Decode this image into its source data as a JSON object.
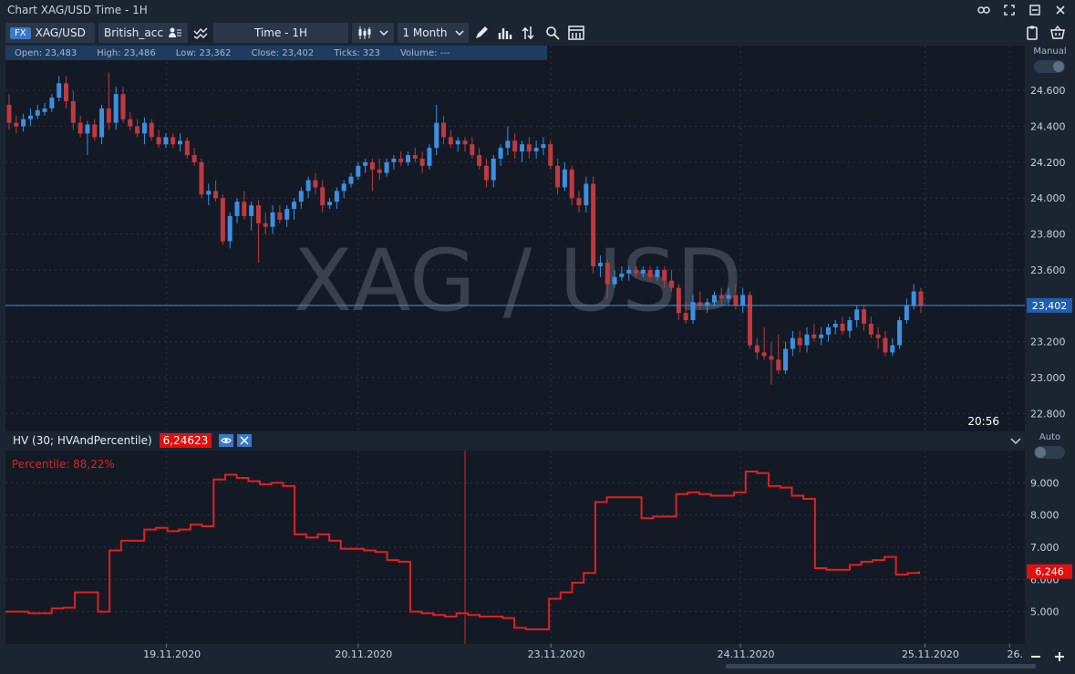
{
  "window": {
    "title": "Chart XAG/USD Time - 1H"
  },
  "toolbar": {
    "fx_badge": "FX",
    "symbol": "XAG/USD",
    "account": "British_acc",
    "timeframe": "Time - 1H",
    "period": "1 Month"
  },
  "info": {
    "open": "Open:  23,483",
    "high": "High:  23,486",
    "low": "Low:  23,362",
    "close": "Close:  23,402",
    "ticks": "Ticks:  323",
    "volume": "Volume:  ---"
  },
  "watermark": "XAG / USD",
  "price_axis": {
    "mode_label": "Manual",
    "ticks": [
      "24.600",
      "24.400",
      "24.200",
      "24.000",
      "23.800",
      "23.600",
      "23.400",
      "23.200",
      "23.000",
      "22.800"
    ],
    "current_price": "23,402",
    "time_label": "20:56"
  },
  "indicator": {
    "name": "HV (30; HVAndPercentile)",
    "value": "6,24623",
    "percentile": "Percentile: 88,22%",
    "mode_label": "Auto",
    "ticks": [
      "9.000",
      "8.000",
      "7.000",
      "6.000",
      "5.000"
    ],
    "current_value": "6,246"
  },
  "time_axis": {
    "labels": [
      "19.11.2020",
      "20.11.2020",
      "23.11.2020",
      "24.11.2020",
      "25.11.2020",
      "26."
    ]
  },
  "colors": {
    "up": "#3d8fe0",
    "down": "#c0393f",
    "hv_line": "#e02020",
    "accent": "#3b78c4"
  },
  "chart_data": [
    {
      "type": "candlestick",
      "title": "XAG / USD",
      "ylim": [
        22.7,
        24.85
      ],
      "ohlc": [
        [
          24.52,
          24.58,
          24.38,
          24.42
        ],
        [
          24.42,
          24.46,
          24.36,
          24.4
        ],
        [
          24.4,
          24.47,
          24.37,
          24.44
        ],
        [
          24.44,
          24.5,
          24.4,
          24.46
        ],
        [
          24.46,
          24.52,
          24.44,
          24.49
        ],
        [
          24.48,
          24.53,
          24.46,
          24.5
        ],
        [
          24.5,
          24.58,
          24.48,
          24.56
        ],
        [
          24.56,
          24.68,
          24.54,
          24.64
        ],
        [
          24.64,
          24.68,
          24.5,
          24.54
        ],
        [
          24.54,
          24.6,
          24.38,
          24.42
        ],
        [
          24.42,
          24.46,
          24.34,
          24.36
        ],
        [
          24.36,
          24.43,
          24.24,
          24.41
        ],
        [
          24.41,
          24.44,
          24.32,
          24.34
        ],
        [
          24.34,
          24.52,
          24.3,
          24.5
        ],
        [
          24.5,
          24.7,
          24.38,
          24.42
        ],
        [
          24.42,
          24.62,
          24.38,
          24.58
        ],
        [
          24.58,
          24.62,
          24.42,
          24.44
        ],
        [
          24.44,
          24.48,
          24.38,
          24.4
        ],
        [
          24.4,
          24.44,
          24.34,
          24.36
        ],
        [
          24.36,
          24.45,
          24.3,
          24.42
        ],
        [
          24.42,
          24.44,
          24.32,
          24.34
        ],
        [
          24.34,
          24.38,
          24.28,
          24.3
        ],
        [
          24.3,
          24.36,
          24.28,
          24.34
        ],
        [
          24.34,
          24.36,
          24.28,
          24.3
        ],
        [
          24.3,
          24.36,
          24.26,
          24.32
        ],
        [
          24.32,
          24.34,
          24.22,
          24.24
        ],
        [
          24.24,
          24.28,
          24.18,
          24.2
        ],
        [
          24.2,
          24.22,
          24.0,
          24.02
        ],
        [
          24.02,
          24.08,
          23.96,
          24.04
        ],
        [
          24.04,
          24.1,
          23.98,
          24.0
        ],
        [
          24.0,
          24.02,
          23.74,
          23.76
        ],
        [
          23.76,
          23.92,
          23.72,
          23.9
        ],
        [
          23.9,
          24.0,
          23.86,
          23.98
        ],
        [
          23.98,
          24.04,
          23.88,
          23.9
        ],
        [
          23.9,
          23.98,
          23.82,
          23.96
        ],
        [
          23.96,
          23.99,
          23.64,
          23.86
        ],
        [
          23.86,
          23.92,
          23.8,
          23.84
        ],
        [
          23.84,
          23.96,
          23.8,
          23.92
        ],
        [
          23.92,
          23.96,
          23.86,
          23.88
        ],
        [
          23.88,
          23.96,
          23.84,
          23.94
        ],
        [
          23.94,
          24.0,
          23.88,
          23.98
        ],
        [
          23.98,
          24.06,
          23.94,
          24.04
        ],
        [
          24.04,
          24.12,
          24.0,
          24.1
        ],
        [
          24.1,
          24.14,
          24.02,
          24.06
        ],
        [
          24.06,
          24.1,
          23.92,
          23.96
        ],
        [
          23.96,
          24.0,
          23.94,
          23.98
        ],
        [
          23.98,
          24.06,
          23.94,
          24.04
        ],
        [
          24.04,
          24.1,
          24.0,
          24.08
        ],
        [
          24.08,
          24.14,
          24.06,
          24.12
        ],
        [
          24.12,
          24.2,
          24.1,
          24.18
        ],
        [
          24.18,
          24.22,
          24.14,
          24.2
        ],
        [
          24.2,
          24.22,
          24.04,
          24.16
        ],
        [
          24.16,
          24.22,
          24.1,
          24.14
        ],
        [
          24.14,
          24.22,
          24.12,
          24.2
        ],
        [
          24.2,
          24.24,
          24.16,
          24.22
        ],
        [
          24.22,
          24.26,
          24.18,
          24.2
        ],
        [
          24.2,
          24.26,
          24.18,
          24.24
        ],
        [
          24.24,
          24.28,
          24.2,
          24.22
        ],
        [
          24.22,
          24.26,
          24.14,
          24.18
        ],
        [
          24.18,
          24.3,
          24.16,
          24.28
        ],
        [
          24.28,
          24.52,
          24.24,
          24.42
        ],
        [
          24.42,
          24.46,
          24.3,
          24.34
        ],
        [
          24.34,
          24.38,
          24.28,
          24.3
        ],
        [
          24.3,
          24.34,
          24.26,
          24.32
        ],
        [
          24.32,
          24.34,
          24.26,
          24.3
        ],
        [
          24.3,
          24.34,
          24.22,
          24.24
        ],
        [
          24.24,
          24.28,
          24.16,
          24.18
        ],
        [
          24.18,
          24.22,
          24.06,
          24.1
        ],
        [
          24.1,
          24.24,
          24.06,
          24.22
        ],
        [
          24.22,
          24.3,
          24.18,
          24.28
        ],
        [
          24.28,
          24.4,
          24.24,
          24.32
        ],
        [
          24.32,
          24.36,
          24.22,
          24.26
        ],
        [
          24.26,
          24.32,
          24.2,
          24.3
        ],
        [
          24.3,
          24.34,
          24.22,
          24.26
        ],
        [
          24.26,
          24.32,
          24.22,
          24.28
        ],
        [
          24.28,
          24.34,
          24.24,
          24.3
        ],
        [
          24.3,
          24.32,
          24.16,
          24.18
        ],
        [
          24.18,
          24.22,
          24.02,
          24.06
        ],
        [
          24.06,
          24.2,
          24.04,
          24.16
        ],
        [
          24.16,
          24.18,
          23.96,
          24.0
        ],
        [
          24.0,
          24.04,
          23.92,
          23.96
        ],
        [
          23.96,
          24.12,
          23.92,
          24.08
        ],
        [
          24.08,
          24.12,
          23.58,
          23.62
        ],
        [
          23.62,
          23.68,
          23.56,
          23.64
        ],
        [
          23.64,
          23.66,
          23.44,
          23.52
        ],
        [
          23.52,
          23.6,
          23.5,
          23.56
        ],
        [
          23.56,
          23.62,
          23.54,
          23.58
        ],
        [
          23.58,
          23.62,
          23.54,
          23.6
        ],
        [
          23.6,
          23.62,
          23.56,
          23.58
        ],
        [
          23.58,
          23.62,
          23.56,
          23.6
        ],
        [
          23.6,
          23.62,
          23.54,
          23.56
        ],
        [
          23.56,
          23.62,
          23.54,
          23.6
        ],
        [
          23.6,
          23.62,
          23.5,
          23.54
        ],
        [
          23.54,
          23.6,
          23.48,
          23.5
        ],
        [
          23.5,
          23.52,
          23.32,
          23.36
        ],
        [
          23.36,
          23.42,
          23.3,
          23.32
        ],
        [
          23.32,
          23.46,
          23.3,
          23.42
        ],
        [
          23.42,
          23.48,
          23.38,
          23.4
        ],
        [
          23.4,
          23.44,
          23.36,
          23.42
        ],
        [
          23.42,
          23.48,
          23.4,
          23.46
        ],
        [
          23.46,
          23.5,
          23.4,
          23.44
        ],
        [
          23.44,
          23.5,
          23.4,
          23.46
        ],
        [
          23.46,
          23.52,
          23.38,
          23.4
        ],
        [
          23.4,
          23.5,
          23.36,
          23.46
        ],
        [
          23.46,
          23.48,
          23.16,
          23.18
        ],
        [
          23.18,
          23.22,
          23.1,
          23.14
        ],
        [
          23.14,
          23.28,
          23.1,
          23.12
        ],
        [
          23.12,
          23.2,
          22.96,
          23.1
        ],
        [
          23.1,
          23.24,
          23.02,
          23.04
        ],
        [
          23.04,
          23.2,
          23.02,
          23.16
        ],
        [
          23.16,
          23.26,
          23.12,
          23.22
        ],
        [
          23.22,
          23.26,
          23.14,
          23.18
        ],
        [
          23.18,
          23.28,
          23.14,
          23.24
        ],
        [
          23.24,
          23.3,
          23.2,
          23.22
        ],
        [
          23.22,
          23.28,
          23.18,
          23.24
        ],
        [
          23.24,
          23.3,
          23.2,
          23.28
        ],
        [
          23.28,
          23.32,
          23.24,
          23.3
        ],
        [
          23.3,
          23.34,
          23.24,
          23.26
        ],
        [
          23.26,
          23.34,
          23.22,
          23.32
        ],
        [
          23.32,
          23.4,
          23.28,
          23.38
        ],
        [
          23.38,
          23.4,
          23.26,
          23.3
        ],
        [
          23.3,
          23.34,
          23.22,
          23.24
        ],
        [
          23.24,
          23.28,
          23.16,
          23.22
        ],
        [
          23.22,
          23.26,
          23.12,
          23.14
        ],
        [
          23.14,
          23.22,
          23.12,
          23.18
        ],
        [
          23.18,
          23.34,
          23.16,
          23.32
        ],
        [
          23.32,
          23.44,
          23.3,
          23.4
        ],
        [
          23.4,
          23.52,
          23.38,
          23.48
        ],
        [
          23.48,
          23.5,
          23.36,
          23.4
        ]
      ]
    },
    {
      "type": "line",
      "title": "HV (30; HVAndPercentile)",
      "ylim": [
        4.0,
        10.0
      ],
      "series": [
        {
          "name": "HV (30; HVAndPercentile)",
          "values": [
            5.0,
            5.0,
            4.95,
            4.95,
            5.1,
            5.12,
            5.6,
            5.6,
            5.0,
            6.9,
            7.2,
            7.2,
            7.55,
            7.6,
            7.5,
            7.55,
            7.7,
            7.65,
            9.1,
            9.25,
            9.15,
            9.05,
            8.95,
            9.0,
            8.9,
            7.4,
            7.3,
            7.4,
            7.2,
            6.95,
            6.95,
            6.9,
            6.85,
            6.6,
            6.55,
            5.0,
            4.95,
            4.9,
            4.85,
            4.95,
            4.9,
            4.85,
            4.85,
            4.8,
            4.5,
            4.45,
            4.45,
            5.4,
            5.6,
            5.9,
            6.2,
            8.4,
            8.55,
            8.55,
            8.55,
            7.9,
            7.95,
            7.95,
            8.65,
            8.7,
            8.65,
            8.6,
            8.6,
            8.7,
            9.35,
            9.3,
            8.9,
            8.85,
            8.6,
            8.5,
            6.35,
            6.3,
            6.3,
            6.45,
            6.55,
            6.6,
            6.7,
            6.15,
            6.2,
            6.25
          ]
        }
      ]
    }
  ]
}
